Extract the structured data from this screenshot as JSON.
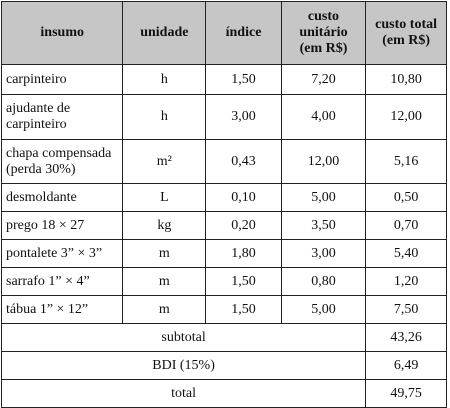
{
  "header": {
    "insumo": "insumo",
    "unidade": "unidade",
    "indice": "índice",
    "custo_unitario_l1": "custo",
    "custo_unitario_l2": "unitário",
    "custo_unitario_l3": "(em R$)",
    "custo_total_l1": "custo total",
    "custo_total_l2": "(em R$)"
  },
  "rows": [
    {
      "insumo_l1": "carpinteiro",
      "insumo_l2": "",
      "unidade": "h",
      "indice": "1,50",
      "custo_unitario": "7,20",
      "custo_total": "10,80"
    },
    {
      "insumo_l1": "ajudante de",
      "insumo_l2": "carpinteiro",
      "unidade": "h",
      "indice": "3,00",
      "custo_unitario": "4,00",
      "custo_total": "12,00"
    },
    {
      "insumo_l1": "chapa compensada",
      "insumo_l2": "(perda 30%)",
      "unidade": "m²",
      "indice": "0,43",
      "custo_unitario": "12,00",
      "custo_total": "5,16"
    },
    {
      "insumo_l1": "desmoldante",
      "insumo_l2": "",
      "unidade": "L",
      "indice": "0,10",
      "custo_unitario": "5,00",
      "custo_total": "0,50"
    },
    {
      "insumo_l1": "prego 18 × 27",
      "insumo_l2": "",
      "unidade": "kg",
      "indice": "0,20",
      "custo_unitario": "3,50",
      "custo_total": "0,70"
    },
    {
      "insumo_l1": "pontalete 3” × 3”",
      "insumo_l2": "",
      "unidade": "m",
      "indice": "1,80",
      "custo_unitario": "3,00",
      "custo_total": "5,40"
    },
    {
      "insumo_l1": "sarrafo 1” × 4”",
      "insumo_l2": "",
      "unidade": "m",
      "indice": "1,50",
      "custo_unitario": "0,80",
      "custo_total": "1,20"
    },
    {
      "insumo_l1": "tábua 1” × 12”",
      "insumo_l2": "",
      "unidade": "m",
      "indice": "1,50",
      "custo_unitario": "5,00",
      "custo_total": "7,50"
    }
  ],
  "summary": {
    "subtotal_label": "subtotal",
    "subtotal_value": "43,26",
    "bdi_label": "BDI (15%)",
    "bdi_value": "6,49",
    "total_label": "total",
    "total_value": "49,75"
  }
}
